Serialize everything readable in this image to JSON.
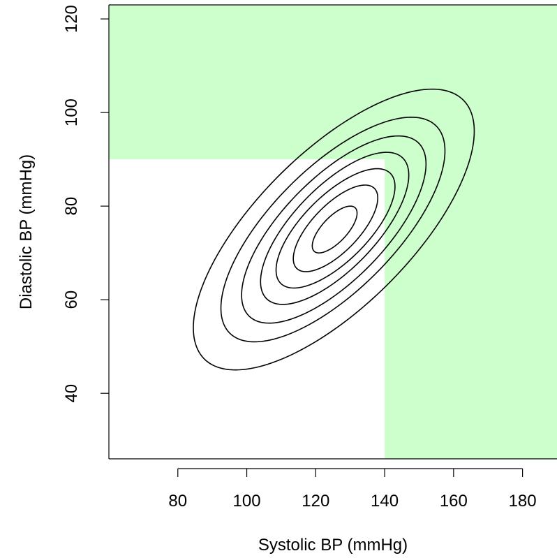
{
  "chart_data": {
    "type": "contour",
    "xlabel": "Systolic BP (mmHg)",
    "ylabel": "Diastolic BP (mmHg)",
    "xlim": [
      60,
      190
    ],
    "ylim": [
      26,
      123
    ],
    "x_ticks": [
      80,
      100,
      120,
      140,
      160,
      180
    ],
    "y_ticks": [
      40,
      60,
      80,
      100,
      120
    ],
    "grid": false,
    "legend": "none",
    "shaded_region": {
      "description": "hypertension region",
      "condition": "systolic >= 140 or diastolic >= 90",
      "systolic_threshold": 140,
      "diastolic_threshold": 90,
      "color": "#ccffcc"
    },
    "contours": {
      "center": [
        125.5,
        75
      ],
      "line_color": "#000000",
      "levels": [
        {
          "systolic_range": [
            84.5,
            166
          ],
          "diastolic_range": [
            45,
            105
          ]
        },
        {
          "systolic_range": [
            92.5,
            157.5
          ],
          "diastolic_range": [
            51,
            99
          ]
        },
        {
          "systolic_range": [
            98.5,
            152
          ],
          "diastolic_range": [
            55,
            95
          ]
        },
        {
          "systolic_range": [
            104,
            147
          ],
          "diastolic_range": [
            59,
            91.5
          ]
        },
        {
          "systolic_range": [
            108.5,
            143
          ],
          "diastolic_range": [
            62.5,
            88
          ]
        },
        {
          "systolic_range": [
            113.5,
            138
          ],
          "diastolic_range": [
            66,
            84.5
          ]
        },
        {
          "systolic_range": [
            119,
            132
          ],
          "diastolic_range": [
            70,
            80
          ]
        }
      ],
      "shape": {
        "sd_systolic": 15,
        "sd_diastolic": 11.5,
        "correlation": 0.7
      }
    }
  }
}
